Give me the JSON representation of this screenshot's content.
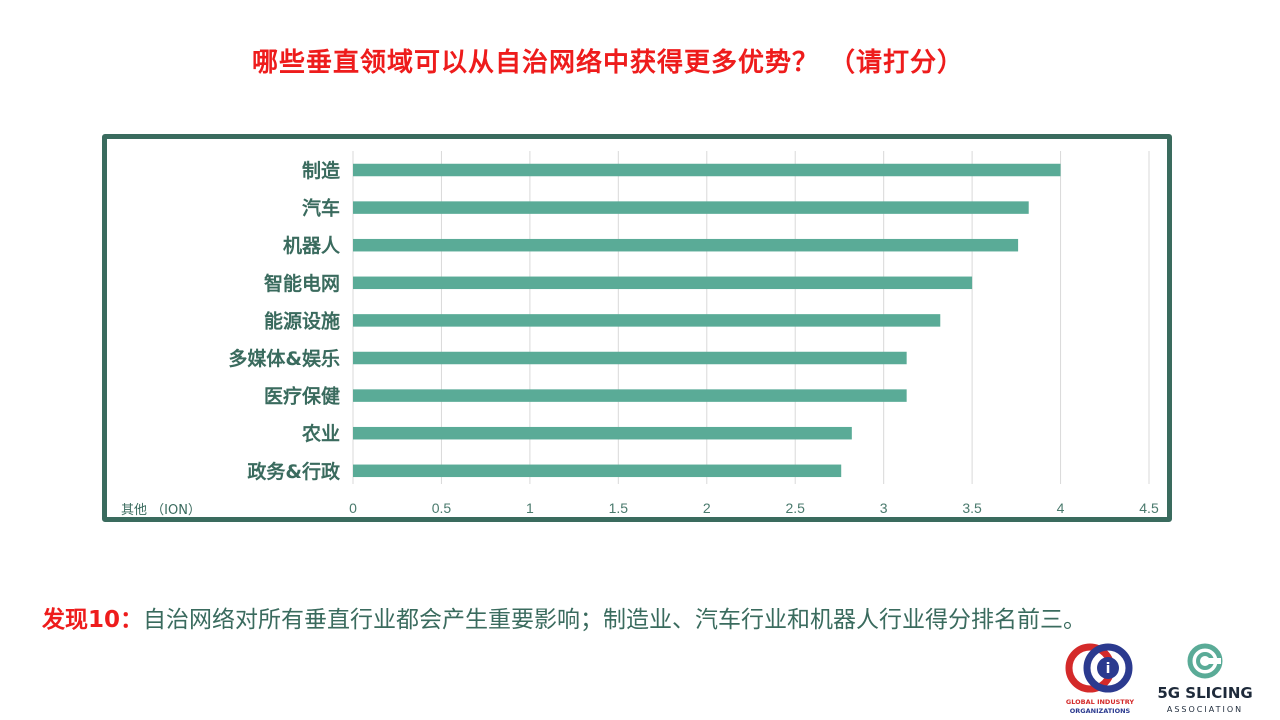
{
  "title": "哪些垂直领域可以从自治网络中获得更多优势？ （请打分）",
  "finding": {
    "label": "发现10：",
    "text": "自治网络对所有垂直行业都会产生重要影响；制造业、汽车行业和机器人行业得分排名前三。"
  },
  "logos": {
    "gio_line1": "GLOBAL INDUSTRY",
    "gio_line2": "ORGANIZATIONS",
    "slicing_name": "5G SLICING",
    "slicing_sub": "ASSOCIATION"
  },
  "colors": {
    "title": "#ee1c1c",
    "bar": "#5aab97",
    "frame": "#3a6b5e",
    "text": "#3a6b5e"
  },
  "chart_data": {
    "type": "bar",
    "orientation": "horizontal",
    "categories": [
      "制造",
      "汽车",
      "机器人",
      "智能电网",
      "能源设施",
      "多媒体&娱乐",
      "医疗保健",
      "农业",
      "政务&行政"
    ],
    "values": [
      4.0,
      3.82,
      3.76,
      3.5,
      3.32,
      3.13,
      3.13,
      2.82,
      2.76
    ],
    "xlim": [
      0,
      4.5
    ],
    "xticks": [
      "0",
      "0.5",
      "1",
      "1.5",
      "2",
      "2.5",
      "3",
      "3.5",
      "4",
      "4.5"
    ],
    "note": "其他 （ION）",
    "grid": true
  }
}
